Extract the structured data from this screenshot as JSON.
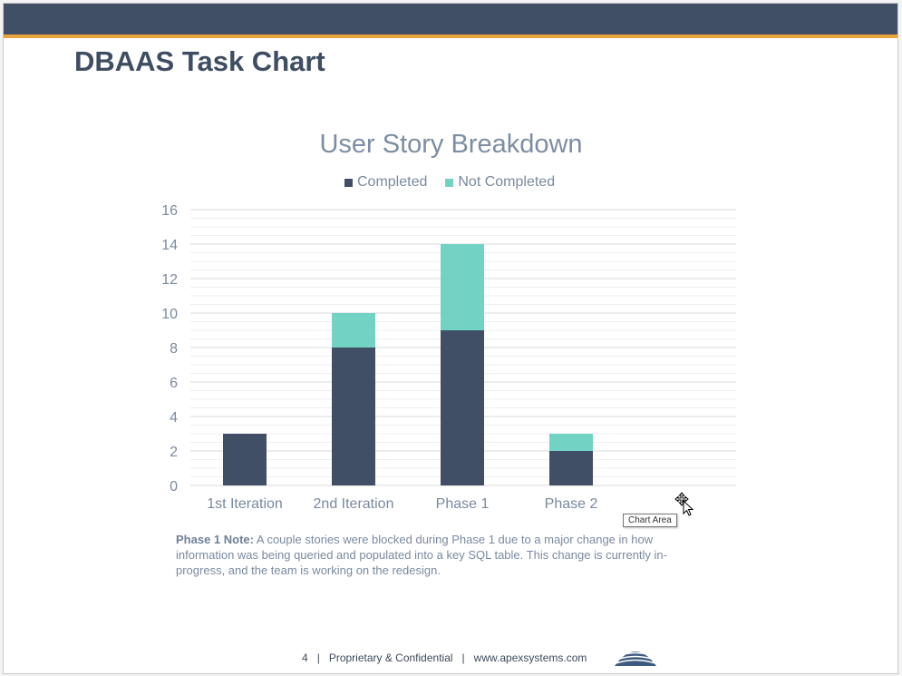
{
  "slide": {
    "title": "DBAAS Task Chart",
    "note_label": "Phase 1 Note:",
    "note_text": " A couple stories were blocked during Phase 1 due to a major change in how information was being queried and populated into a key SQL table. This change is currently in-progress, and the team is working on the redesign.",
    "tooltip": "Chart Area"
  },
  "footer": {
    "page": "4",
    "sep1": "|",
    "confidential": "Proprietary & Confidential",
    "sep2": "|",
    "website": "www.apexsystems.com"
  },
  "chart_data": {
    "type": "bar",
    "stacked": true,
    "title": "User Story Breakdown",
    "categories": [
      "1st Iteration",
      "2nd Iteration",
      "Phase 1",
      "Phase 2"
    ],
    "series": [
      {
        "name": "Completed",
        "values": [
          3,
          8,
          9,
          2
        ],
        "color": "#414f66"
      },
      {
        "name": "Not Completed",
        "values": [
          0,
          2,
          5,
          1
        ],
        "color": "#72d3c4"
      }
    ],
    "ylim": [
      0,
      16
    ],
    "yticks": [
      0,
      2,
      4,
      6,
      8,
      10,
      12,
      14,
      16
    ],
    "grid": true,
    "legend_position": "top"
  },
  "colors": {
    "header_bar": "#414f66",
    "accent_line": "#e8a33a"
  }
}
